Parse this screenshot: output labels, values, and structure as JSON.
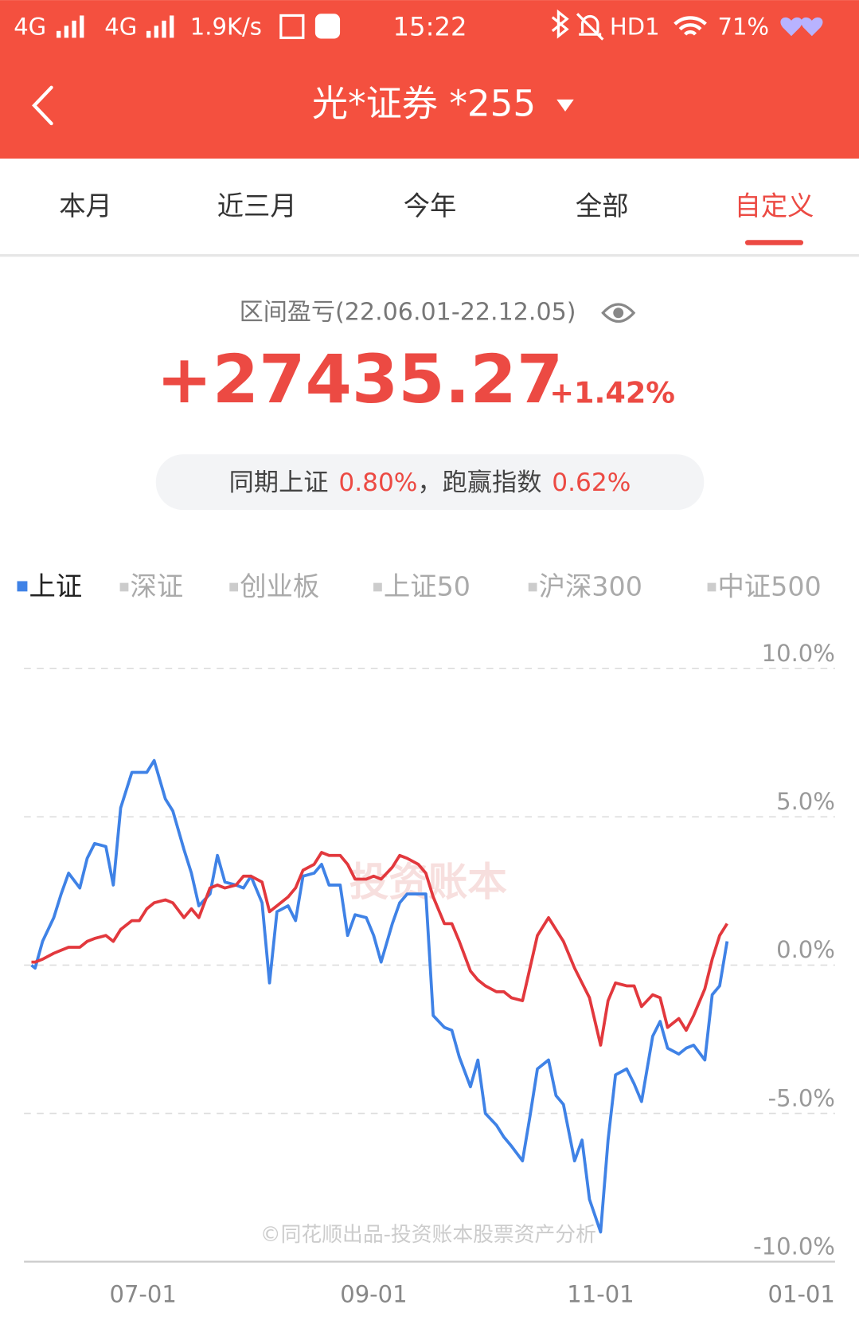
{
  "status_bar": {
    "network_1": "4G",
    "network_2": "4G",
    "speed": "1.9K/s",
    "time": "15:22",
    "hd": "HD1",
    "battery": "71%"
  },
  "header": {
    "title": "光*证券 *255"
  },
  "tabs": {
    "items": [
      "本月",
      "近三月",
      "今年",
      "全部",
      "自定义"
    ],
    "active": 4
  },
  "summary": {
    "label": "区间盈亏(22.06.01-22.12.05)",
    "amount": "+27435.27",
    "percent": "+1.42%"
  },
  "comparison": {
    "index_label": "同期上证",
    "index_value": "0.80%",
    "beat_label": "，跑赢指数",
    "beat_value": "0.62%"
  },
  "chart_data": {
    "type": "line",
    "index_options": [
      "深证",
      "创业板",
      "上证50",
      "沪深300",
      "中证500"
    ],
    "x": [
      "06-01",
      "06-02",
      "06-04",
      "06-07",
      "06-09",
      "06-11",
      "06-14",
      "06-16",
      "06-18",
      "06-21",
      "06-23",
      "06-25",
      "06-28",
      "06-30",
      "07-02",
      "07-04",
      "07-07",
      "07-09",
      "07-12",
      "07-14",
      "07-16",
      "07-19",
      "07-21",
      "07-23",
      "07-26",
      "07-28",
      "07-30",
      "08-02",
      "08-04",
      "08-06",
      "08-09",
      "08-11",
      "08-13",
      "08-16",
      "08-18",
      "08-20",
      "08-23",
      "08-25",
      "08-27",
      "08-30",
      "09-01",
      "09-03",
      "09-06",
      "09-08",
      "09-10",
      "09-13",
      "09-15",
      "09-17",
      "09-20",
      "09-22",
      "09-24",
      "09-27",
      "09-29",
      "10-01",
      "10-04",
      "10-06",
      "10-08",
      "10-11",
      "10-13",
      "10-15",
      "10-18",
      "10-20",
      "10-22",
      "10-25",
      "10-27",
      "10-29",
      "11-01",
      "11-03",
      "11-05",
      "11-08",
      "11-10",
      "11-12",
      "11-15",
      "11-17",
      "11-19",
      "11-22",
      "11-24",
      "11-26",
      "11-29",
      "12-01",
      "12-03",
      "12-05"
    ],
    "series": [
      {
        "color": "#e2383d",
        "values": [
          0.1,
          0.1,
          0.2,
          0.4,
          0.5,
          0.6,
          0.6,
          0.8,
          0.9,
          1.0,
          0.8,
          1.2,
          1.5,
          1.5,
          1.9,
          2.1,
          2.2,
          2.1,
          1.6,
          1.9,
          1.6,
          2.6,
          2.7,
          2.6,
          2.7,
          3.0,
          3.0,
          2.8,
          1.8,
          2.0,
          2.3,
          2.6,
          3.2,
          3.4,
          3.8,
          3.7,
          3.7,
          3.4,
          2.9,
          2.9,
          3.0,
          2.9,
          3.3,
          3.7,
          3.6,
          3.4,
          3.1,
          2.3,
          1.4,
          1.4,
          0.8,
          -0.2,
          -0.5,
          -0.7,
          -0.9,
          -0.9,
          -1.1,
          -1.2,
          -0.1,
          1.0,
          1.6,
          1.2,
          0.8,
          -0.1,
          -0.6,
          -1.1,
          -2.7,
          -1.2,
          -0.6,
          -0.7,
          -0.7,
          -1.4,
          -1.0,
          -1.1,
          -2.1,
          -1.8,
          -2.2,
          -1.7,
          -0.8,
          0.2,
          1.0,
          1.4
        ]
      },
      {
        "name": "上证",
        "color": "#3f82e6",
        "values": [
          0,
          -0.1,
          0.8,
          1.6,
          2.4,
          3.1,
          2.6,
          3.6,
          4.1,
          4.0,
          2.7,
          5.3,
          6.5,
          6.5,
          6.5,
          6.9,
          5.6,
          5.2,
          3.9,
          3.1,
          2.0,
          2.4,
          3.7,
          2.8,
          2.7,
          2.6,
          3.0,
          2.1,
          -0.6,
          1.8,
          2.0,
          1.5,
          3.0,
          3.1,
          3.4,
          2.7,
          2.7,
          1.0,
          1.7,
          1.6,
          1.0,
          0.1,
          1.4,
          2.1,
          2.4,
          2.4,
          2.4,
          -1.7,
          -2.1,
          -2.2,
          -3.1,
          -4.1,
          -3.2,
          -5.0,
          -5.4,
          -5.8,
          -6.1,
          -6.6,
          -5.1,
          -3.5,
          -3.2,
          -4.4,
          -4.7,
          -6.6,
          -5.9,
          -7.9,
          -9.0,
          -5.9,
          -3.7,
          -3.5,
          -4.0,
          -4.6,
          -2.4,
          -1.9,
          -2.8,
          -3.0,
          -2.8,
          -2.7,
          -3.2,
          -1.0,
          -0.7,
          0.8
        ]
      }
    ],
    "xlim": [
      "05-30",
      "01-03"
    ],
    "xticks": [
      "07-01",
      "09-01",
      "11-01",
      "01-01"
    ],
    "ylim": [
      -10,
      10
    ],
    "yticks": [
      {
        "value": 10,
        "label": "10.0%"
      },
      {
        "value": 5,
        "label": "5.0%"
      },
      {
        "value": 0,
        "label": "0.0%"
      },
      {
        "value": -5,
        "label": "-5.0%"
      },
      {
        "value": -10,
        "label": "-10.0%"
      }
    ],
    "grid": true,
    "watermark": "投资账本",
    "footer": "©同花顺出品-投资账本股票资产分析"
  }
}
